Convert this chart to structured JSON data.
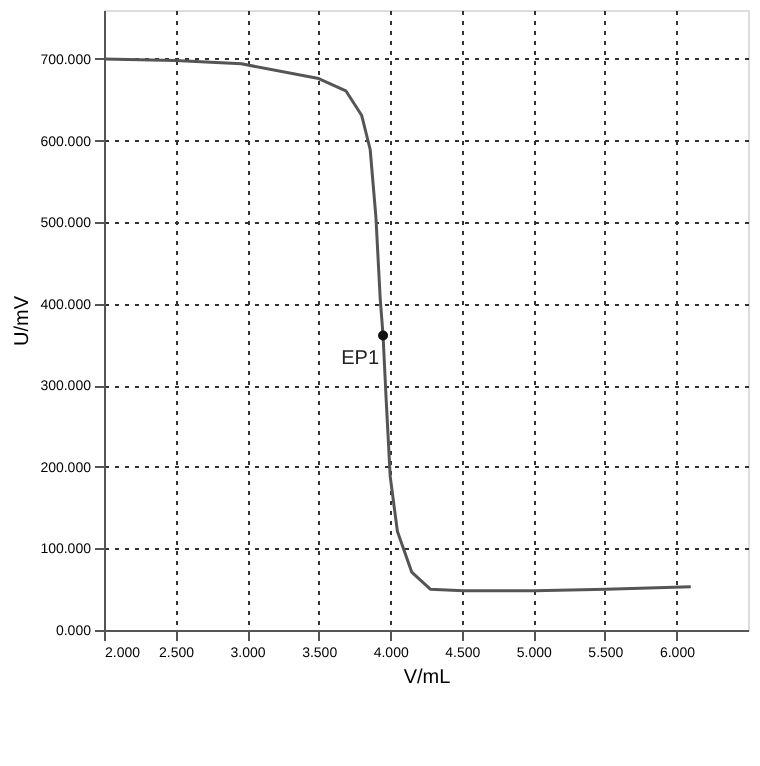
{
  "chart_data": {
    "type": "line",
    "xlabel": "V/mL",
    "ylabel": "U/mV",
    "x": [
      2.0,
      2.5,
      2.96,
      3.5,
      3.69,
      3.8,
      3.86,
      3.9,
      3.93,
      3.95,
      3.97,
      4.0,
      4.05,
      4.15,
      4.28,
      4.51,
      5.01,
      5.51,
      6.1
    ],
    "series": [
      {
        "color": "#555555",
        "values": [
          700,
          698,
          694,
          676,
          661,
          631,
          589,
          506,
          406,
          361,
          288,
          188,
          121,
          71,
          50,
          48,
          48,
          50,
          53
        ]
      }
    ],
    "xlim": [
      2.0,
      6.5
    ],
    "ylim": [
      0,
      760
    ],
    "xticks": [
      {
        "value": 2,
        "label": "2.000"
      },
      {
        "value": 2.5,
        "label": "2.500"
      },
      {
        "value": 3,
        "label": "3.000"
      },
      {
        "value": 3.5,
        "label": "3.500"
      },
      {
        "value": 4,
        "label": "4.000"
      },
      {
        "value": 4.5,
        "label": "4.500"
      },
      {
        "value": 5,
        "label": "5.000"
      },
      {
        "value": 5.5,
        "label": "5.500"
      },
      {
        "value": 6,
        "label": "6.000"
      }
    ],
    "yticks": [
      {
        "value": 0,
        "label": "0.000"
      },
      {
        "value": 100,
        "label": "100.000"
      },
      {
        "value": 200,
        "label": "200.000"
      },
      {
        "value": 300,
        "label": "300.000"
      },
      {
        "value": 400,
        "label": "400.000"
      },
      {
        "value": 500,
        "label": "500.000"
      },
      {
        "value": 600,
        "label": "600.000"
      },
      {
        "value": 700,
        "label": "700.000"
      }
    ],
    "annotations": [
      {
        "text": "EP1",
        "x": 3.95,
        "y": 361
      }
    ],
    "grid": true,
    "marker": "none",
    "line_style": "solid"
  }
}
